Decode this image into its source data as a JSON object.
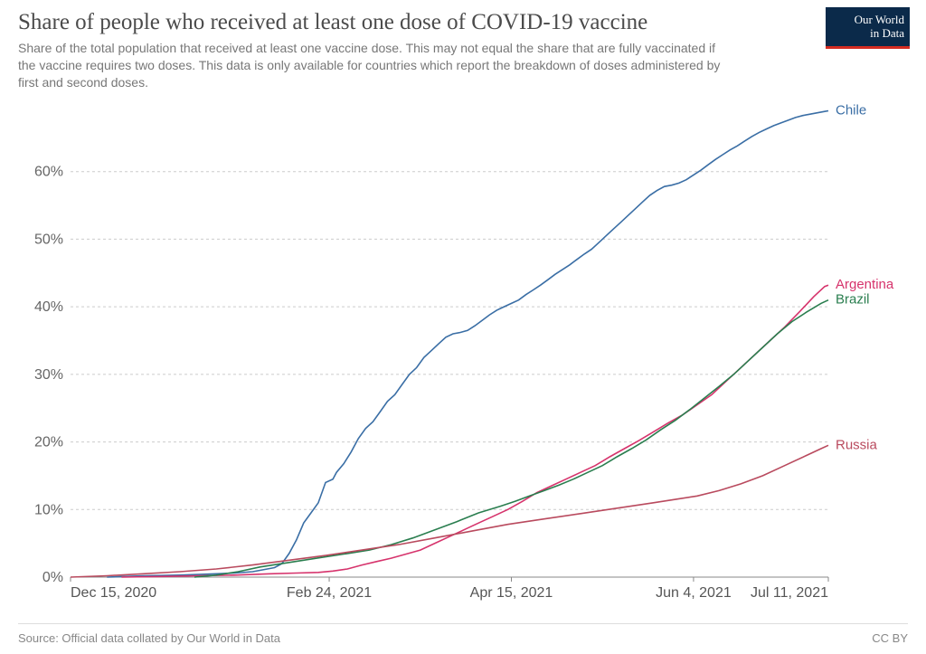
{
  "header": {
    "title": "Share of people who received at least one dose of COVID-19 vaccine",
    "subtitle": "Share of the total population that received at least one vaccine dose. This may not equal the share that are fully vaccinated if the vaccine requires two doses. This data is only available for countries which report the breakdown of doses administered by first and second doses."
  },
  "logo": {
    "line1": "Our World",
    "line2": "in Data"
  },
  "footer": {
    "source": "Source: Official data collated by Our World in Data",
    "license": "CC BY"
  },
  "chart": {
    "type": "line",
    "background_color": "#ffffff",
    "grid_color": "#cccccc",
    "grid_dash": "3,3",
    "axis_text_color": "#666666",
    "x_axis_text_color": "#555555",
    "axis_font_family": "Arial",
    "axis_fontsize": 16,
    "line_width": 1.6,
    "x": {
      "min": 0,
      "max": 208,
      "ticks": [
        {
          "t": 0,
          "label": "Dec 15, 2020"
        },
        {
          "t": 71,
          "label": "Feb 24, 2021"
        },
        {
          "t": 121,
          "label": "Apr 15, 2021"
        },
        {
          "t": 171,
          "label": "Jun 4, 2021"
        },
        {
          "t": 208,
          "label": "Jul 11, 2021"
        }
      ]
    },
    "y": {
      "min": 0,
      "max": 70,
      "ticks": [
        {
          "v": 0,
          "label": "0%"
        },
        {
          "v": 10,
          "label": "10%"
        },
        {
          "v": 20,
          "label": "20%"
        },
        {
          "v": 30,
          "label": "30%"
        },
        {
          "v": 40,
          "label": "40%"
        },
        {
          "v": 50,
          "label": "50%"
        },
        {
          "v": 60,
          "label": "60%"
        }
      ]
    },
    "series": [
      {
        "name": "Chile",
        "color": "#3a6ea5",
        "label_color": "#3a6ea5",
        "end_label": "Chile",
        "points": [
          [
            10,
            0
          ],
          [
            20,
            0.2
          ],
          [
            30,
            0.3
          ],
          [
            40,
            0.5
          ],
          [
            45,
            0.6
          ],
          [
            50,
            0.8
          ],
          [
            52,
            1.0
          ],
          [
            54,
            1.2
          ],
          [
            56,
            1.4
          ],
          [
            58,
            2.0
          ],
          [
            60,
            3.5
          ],
          [
            62,
            5.5
          ],
          [
            64,
            8.0
          ],
          [
            66,
            9.5
          ],
          [
            68,
            11.0
          ],
          [
            70,
            14.0
          ],
          [
            72,
            14.5
          ],
          [
            73,
            15.5
          ],
          [
            75,
            16.8
          ],
          [
            77,
            18.5
          ],
          [
            79,
            20.5
          ],
          [
            81,
            22.0
          ],
          [
            83,
            23.0
          ],
          [
            85,
            24.5
          ],
          [
            87,
            26.0
          ],
          [
            89,
            27.0
          ],
          [
            91,
            28.5
          ],
          [
            93,
            30.0
          ],
          [
            95,
            31.0
          ],
          [
            97,
            32.5
          ],
          [
            99,
            33.5
          ],
          [
            101,
            34.5
          ],
          [
            103,
            35.5
          ],
          [
            105,
            36.0
          ],
          [
            107,
            36.2
          ],
          [
            109,
            36.5
          ],
          [
            111,
            37.2
          ],
          [
            113,
            38.0
          ],
          [
            115,
            38.8
          ],
          [
            117,
            39.5
          ],
          [
            119,
            40.0
          ],
          [
            121,
            40.5
          ],
          [
            123,
            41.0
          ],
          [
            125,
            41.8
          ],
          [
            127,
            42.5
          ],
          [
            129,
            43.2
          ],
          [
            131,
            44.0
          ],
          [
            133,
            44.8
          ],
          [
            135,
            45.5
          ],
          [
            137,
            46.2
          ],
          [
            139,
            47.0
          ],
          [
            141,
            47.8
          ],
          [
            143,
            48.5
          ],
          [
            145,
            49.5
          ],
          [
            147,
            50.5
          ],
          [
            149,
            51.5
          ],
          [
            151,
            52.5
          ],
          [
            153,
            53.5
          ],
          [
            155,
            54.5
          ],
          [
            157,
            55.5
          ],
          [
            159,
            56.5
          ],
          [
            161,
            57.2
          ],
          [
            163,
            57.8
          ],
          [
            165,
            58.0
          ],
          [
            167,
            58.3
          ],
          [
            169,
            58.8
          ],
          [
            171,
            59.5
          ],
          [
            173,
            60.2
          ],
          [
            175,
            61.0
          ],
          [
            177,
            61.8
          ],
          [
            179,
            62.5
          ],
          [
            181,
            63.2
          ],
          [
            183,
            63.8
          ],
          [
            185,
            64.5
          ],
          [
            187,
            65.2
          ],
          [
            189,
            65.8
          ],
          [
            191,
            66.3
          ],
          [
            193,
            66.8
          ],
          [
            195,
            67.2
          ],
          [
            197,
            67.6
          ],
          [
            199,
            68.0
          ],
          [
            201,
            68.3
          ],
          [
            203,
            68.5
          ],
          [
            205,
            68.7
          ],
          [
            207,
            68.9
          ],
          [
            208,
            69.0
          ]
        ]
      },
      {
        "name": "Argentina",
        "color": "#d6336c",
        "label_color": "#d6336c",
        "end_label": "Argentina",
        "points": [
          [
            14,
            0
          ],
          [
            25,
            0.1
          ],
          [
            35,
            0.2
          ],
          [
            45,
            0.3
          ],
          [
            55,
            0.5
          ],
          [
            62,
            0.6
          ],
          [
            68,
            0.7
          ],
          [
            72,
            0.9
          ],
          [
            76,
            1.2
          ],
          [
            80,
            1.8
          ],
          [
            84,
            2.3
          ],
          [
            88,
            2.8
          ],
          [
            92,
            3.4
          ],
          [
            96,
            4.0
          ],
          [
            100,
            5.0
          ],
          [
            104,
            6.0
          ],
          [
            108,
            7.0
          ],
          [
            112,
            8.0
          ],
          [
            116,
            9.0
          ],
          [
            120,
            10.0
          ],
          [
            124,
            11.2
          ],
          [
            128,
            12.5
          ],
          [
            132,
            13.5
          ],
          [
            136,
            14.5
          ],
          [
            140,
            15.5
          ],
          [
            144,
            16.5
          ],
          [
            148,
            17.8
          ],
          [
            152,
            19.0
          ],
          [
            156,
            20.2
          ],
          [
            160,
            21.5
          ],
          [
            164,
            22.8
          ],
          [
            168,
            24.0
          ],
          [
            172,
            25.5
          ],
          [
            176,
            27.0
          ],
          [
            180,
            29.0
          ],
          [
            184,
            31.0
          ],
          [
            188,
            33.0
          ],
          [
            192,
            35.0
          ],
          [
            196,
            37.0
          ],
          [
            200,
            39.2
          ],
          [
            204,
            41.5
          ],
          [
            207,
            43.0
          ],
          [
            208,
            43.2
          ]
        ]
      },
      {
        "name": "Brazil",
        "color": "#2a7e4f",
        "label_color": "#2a7e4f",
        "end_label": "Brazil",
        "points": [
          [
            34,
            0
          ],
          [
            40,
            0.3
          ],
          [
            46,
            0.8
          ],
          [
            52,
            1.5
          ],
          [
            58,
            2.0
          ],
          [
            64,
            2.5
          ],
          [
            70,
            3.0
          ],
          [
            76,
            3.5
          ],
          [
            82,
            4.0
          ],
          [
            88,
            4.8
          ],
          [
            94,
            5.8
          ],
          [
            100,
            7.0
          ],
          [
            106,
            8.2
          ],
          [
            112,
            9.5
          ],
          [
            118,
            10.5
          ],
          [
            122,
            11.2
          ],
          [
            126,
            12.0
          ],
          [
            130,
            12.8
          ],
          [
            134,
            13.6
          ],
          [
            138,
            14.5
          ],
          [
            142,
            15.5
          ],
          [
            146,
            16.5
          ],
          [
            150,
            17.8
          ],
          [
            154,
            19.0
          ],
          [
            158,
            20.3
          ],
          [
            162,
            21.8
          ],
          [
            166,
            23.2
          ],
          [
            170,
            24.8
          ],
          [
            174,
            26.5
          ],
          [
            178,
            28.2
          ],
          [
            182,
            30.0
          ],
          [
            186,
            32.0
          ],
          [
            190,
            34.0
          ],
          [
            194,
            36.0
          ],
          [
            198,
            37.8
          ],
          [
            202,
            39.2
          ],
          [
            206,
            40.5
          ],
          [
            208,
            41.0
          ]
        ]
      },
      {
        "name": "Russia",
        "color": "#b94a5e",
        "label_color": "#b94a5e",
        "end_label": "Russia",
        "points": [
          [
            0,
            0
          ],
          [
            10,
            0.2
          ],
          [
            20,
            0.5
          ],
          [
            30,
            0.8
          ],
          [
            40,
            1.2
          ],
          [
            50,
            1.8
          ],
          [
            60,
            2.5
          ],
          [
            70,
            3.2
          ],
          [
            80,
            4.0
          ],
          [
            90,
            4.8
          ],
          [
            100,
            5.8
          ],
          [
            110,
            6.8
          ],
          [
            120,
            7.8
          ],
          [
            130,
            8.6
          ],
          [
            140,
            9.4
          ],
          [
            150,
            10.2
          ],
          [
            160,
            11.0
          ],
          [
            166,
            11.5
          ],
          [
            172,
            12.0
          ],
          [
            178,
            12.8
          ],
          [
            184,
            13.8
          ],
          [
            190,
            15.0
          ],
          [
            196,
            16.5
          ],
          [
            202,
            18.0
          ],
          [
            206,
            19.0
          ],
          [
            208,
            19.5
          ]
        ]
      }
    ]
  }
}
